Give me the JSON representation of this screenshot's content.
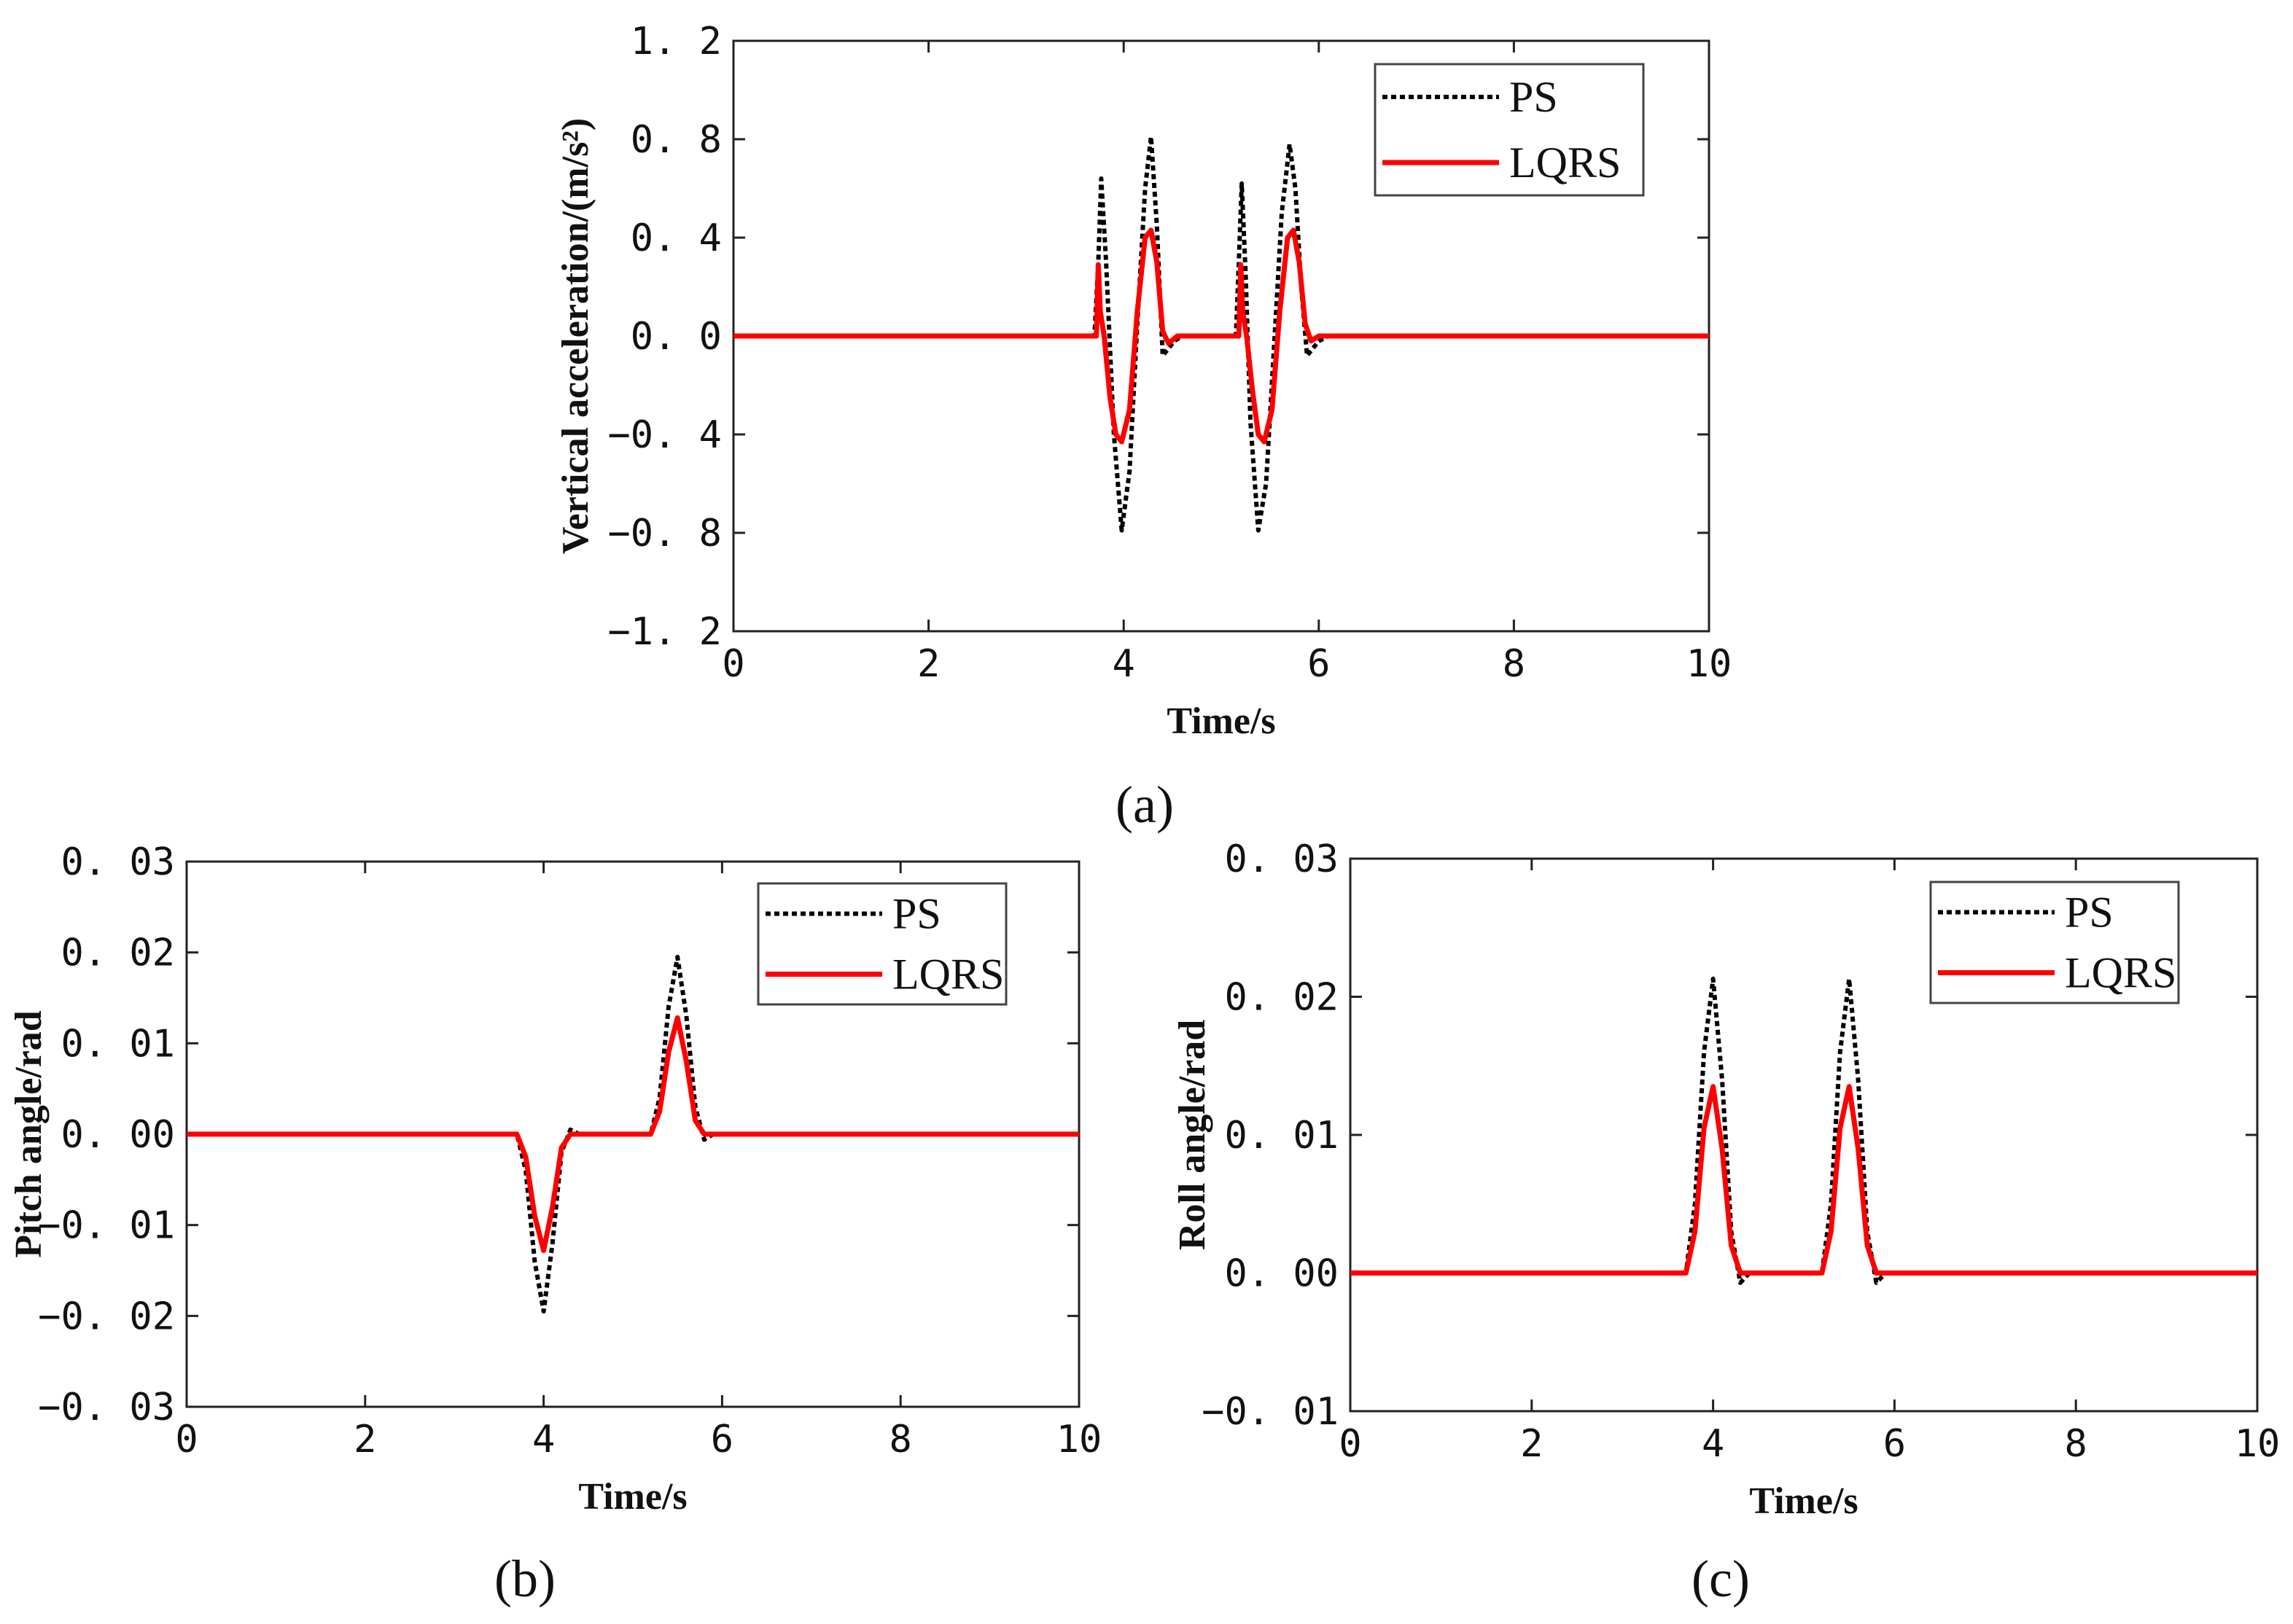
{
  "chart_data": [
    {
      "type": "line",
      "panel": "a",
      "caption": "(a)",
      "xlabel": "Time/s",
      "ylabel": "Vertical acceleration/(m/s²)",
      "xlim": [
        0,
        10
      ],
      "ylim": [
        -1.2,
        1.2
      ],
      "xticks": [
        0,
        2,
        4,
        6,
        8,
        10
      ],
      "xtick_labels": [
        "0",
        "2",
        "4",
        "6",
        "8",
        "10"
      ],
      "yticks": [
        -1.2,
        -0.8,
        -0.4,
        0.0,
        0.4,
        0.8,
        1.2
      ],
      "ytick_labels": [
        "−1. 2",
        "−0. 8",
        "−0. 4",
        "0. 0",
        "0. 4",
        "0. 8",
        "1. 2"
      ],
      "legend_position": "top-right",
      "series": [
        {
          "name": "PS",
          "color": "#000000",
          "style": "dotted",
          "x": [
            0,
            3.7,
            3.74,
            3.77,
            3.82,
            3.9,
            3.98,
            4.06,
            4.14,
            4.22,
            4.28,
            4.34,
            4.4,
            4.46,
            4.52,
            4.6,
            5.15,
            5.18,
            5.21,
            5.25,
            5.3,
            5.38,
            5.46,
            5.54,
            5.62,
            5.7,
            5.76,
            5.82,
            5.88,
            5.94,
            6.0,
            6.1,
            10
          ],
          "values": [
            0,
            0,
            0.3,
            0.64,
            0.3,
            -0.4,
            -0.79,
            -0.55,
            0.05,
            0.6,
            0.81,
            0.45,
            -0.08,
            -0.05,
            -0.02,
            0,
            0,
            0.3,
            0.62,
            0.25,
            -0.35,
            -0.79,
            -0.6,
            -0.05,
            0.5,
            0.78,
            0.6,
            0.2,
            -0.08,
            -0.05,
            -0.02,
            0,
            0
          ]
        },
        {
          "name": "LQRS",
          "color": "#ff0000",
          "style": "solid",
          "x": [
            0,
            3.72,
            3.74,
            3.76,
            3.8,
            3.86,
            3.92,
            3.98,
            4.06,
            4.14,
            4.22,
            4.28,
            4.34,
            4.4,
            4.46,
            4.55,
            5.18,
            5.2,
            5.22,
            5.26,
            5.32,
            5.38,
            5.44,
            5.52,
            5.6,
            5.68,
            5.74,
            5.8,
            5.86,
            5.92,
            6.0,
            10
          ],
          "values": [
            0,
            0,
            0.29,
            0.1,
            0,
            -0.25,
            -0.4,
            -0.43,
            -0.3,
            0.1,
            0.4,
            0.43,
            0.3,
            0.02,
            -0.03,
            0,
            0,
            0.29,
            0.1,
            0,
            -0.22,
            -0.4,
            -0.43,
            -0.3,
            0.1,
            0.4,
            0.43,
            0.3,
            0.05,
            -0.02,
            0,
            0
          ]
        }
      ]
    },
    {
      "type": "line",
      "panel": "b",
      "caption": "(b)",
      "xlabel": "Time/s",
      "ylabel": "Pitch angle/rad",
      "xlim": [
        0,
        10
      ],
      "ylim": [
        -0.03,
        0.03
      ],
      "xticks": [
        0,
        2,
        4,
        6,
        8,
        10
      ],
      "xtick_labels": [
        "0",
        "2",
        "4",
        "6",
        "8",
        "10"
      ],
      "yticks": [
        -0.03,
        -0.02,
        -0.01,
        0.0,
        0.01,
        0.02,
        0.03
      ],
      "ytick_labels": [
        "−0. 03",
        "−0. 02",
        "−0. 01",
        "0. 00",
        "0. 01",
        "0. 02",
        "0. 03"
      ],
      "legend_position": "top-right",
      "series": [
        {
          "name": "PS",
          "color": "#000000",
          "style": "dotted",
          "x": [
            0,
            3.7,
            3.8,
            3.9,
            4.0,
            4.1,
            4.2,
            4.3,
            4.4,
            5.2,
            5.3,
            5.4,
            5.5,
            5.6,
            5.7,
            5.8,
            5.9,
            10
          ],
          "values": [
            0,
            0,
            -0.004,
            -0.014,
            -0.0195,
            -0.012,
            -0.002,
            0.0005,
            0,
            0,
            0.004,
            0.014,
            0.0195,
            0.013,
            0.003,
            -0.0006,
            0,
            0
          ]
        },
        {
          "name": "LQRS",
          "color": "#ff0000",
          "style": "solid",
          "x": [
            0,
            3.7,
            3.8,
            3.9,
            4.0,
            4.1,
            4.2,
            4.3,
            4.4,
            5.2,
            5.3,
            5.4,
            5.5,
            5.6,
            5.7,
            5.8,
            5.9,
            10
          ],
          "values": [
            0,
            0,
            -0.0025,
            -0.009,
            -0.0128,
            -0.008,
            -0.0015,
            0,
            0,
            0,
            0.0025,
            0.009,
            0.0128,
            0.008,
            0.0015,
            0,
            0,
            0
          ]
        }
      ]
    },
    {
      "type": "line",
      "panel": "c",
      "caption": "(c)",
      "xlabel": "Time/s",
      "ylabel": "Roll angle/rad",
      "xlim": [
        0,
        10
      ],
      "ylim": [
        -0.01,
        0.03
      ],
      "xticks": [
        0,
        2,
        4,
        6,
        8,
        10
      ],
      "xtick_labels": [
        "0",
        "2",
        "4",
        "6",
        "8",
        "10"
      ],
      "yticks": [
        -0.01,
        0.0,
        0.01,
        0.02,
        0.03
      ],
      "ytick_labels": [
        "−0. 01",
        "0. 00",
        "0. 01",
        "0. 02",
        "0. 03"
      ],
      "legend_position": "top-right",
      "series": [
        {
          "name": "PS",
          "color": "#000000",
          "style": "dotted",
          "x": [
            0,
            3.7,
            3.8,
            3.9,
            4.0,
            4.1,
            4.2,
            4.3,
            4.4,
            5.2,
            5.3,
            5.4,
            5.5,
            5.6,
            5.7,
            5.8,
            5.9,
            10
          ],
          "values": [
            0,
            0,
            0.005,
            0.016,
            0.0213,
            0.014,
            0.003,
            -0.0007,
            0,
            0,
            0.005,
            0.016,
            0.0213,
            0.014,
            0.003,
            -0.0007,
            0,
            0
          ]
        },
        {
          "name": "LQRS",
          "color": "#ff0000",
          "style": "solid",
          "x": [
            0,
            3.7,
            3.8,
            3.9,
            4.0,
            4.1,
            4.2,
            4.3,
            4.4,
            5.2,
            5.3,
            5.4,
            5.5,
            5.6,
            5.7,
            5.8,
            5.9,
            10
          ],
          "values": [
            0,
            0,
            0.003,
            0.0105,
            0.0135,
            0.009,
            0.002,
            0,
            0,
            0,
            0.003,
            0.0105,
            0.0135,
            0.009,
            0.002,
            0,
            0,
            0
          ]
        }
      ]
    }
  ]
}
